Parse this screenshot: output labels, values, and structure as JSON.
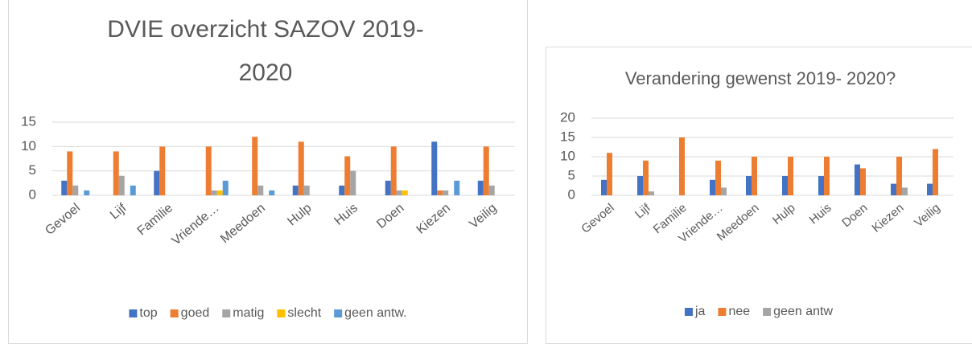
{
  "chart_data": [
    {
      "type": "bar",
      "title": "DVIE overzicht SAZOV 2019-2020",
      "categories": [
        "Gevoel",
        "Lijf",
        "Familie",
        "Vriende…",
        "Meedoen",
        "Hulp",
        "Huis",
        "Doen",
        "Kiezen",
        "Veilig"
      ],
      "series": [
        {
          "name": "top",
          "color": "#4472c4",
          "values": [
            3,
            0,
            5,
            0,
            0,
            2,
            2,
            3,
            11,
            3
          ]
        },
        {
          "name": "goed",
          "color": "#ed7d31",
          "values": [
            9,
            9,
            10,
            10,
            12,
            11,
            8,
            10,
            1,
            10
          ]
        },
        {
          "name": "matig",
          "color": "#a5a5a5",
          "values": [
            2,
            4,
            0,
            1,
            2,
            2,
            5,
            1,
            1,
            2
          ]
        },
        {
          "name": "slecht",
          "color": "#ffc000",
          "values": [
            0,
            0,
            0,
            1,
            0,
            0,
            0,
            1,
            0,
            0
          ]
        },
        {
          "name": "geen antw.",
          "color": "#5b9bd5",
          "values": [
            1,
            2,
            0,
            3,
            1,
            0,
            0,
            0,
            3,
            0
          ]
        }
      ],
      "ylim": [
        0,
        15
      ],
      "yticks": [
        0,
        5,
        10,
        15
      ],
      "grid": true,
      "legend": "bottom"
    },
    {
      "type": "bar",
      "title": "Verandering gewenst 2019- 2020?",
      "categories": [
        "Gevoel",
        "Lijf",
        "Familie",
        "Vriende…",
        "Meedoen",
        "Hulp",
        "Huis",
        "Doen",
        "Kiezen",
        "Veilig"
      ],
      "series": [
        {
          "name": "ja",
          "color": "#4472c4",
          "values": [
            4,
            5,
            0,
            4,
            5,
            5,
            5,
            8,
            3,
            3
          ]
        },
        {
          "name": "nee",
          "color": "#ed7d31",
          "values": [
            11,
            9,
            15,
            9,
            10,
            10,
            10,
            7,
            10,
            12
          ]
        },
        {
          "name": "geen antw",
          "color": "#a5a5a5",
          "values": [
            0,
            1,
            0,
            2,
            0,
            0,
            0,
            0,
            2,
            0
          ]
        }
      ],
      "ylim": [
        0,
        20
      ],
      "yticks": [
        0,
        5,
        10,
        15,
        20
      ],
      "grid": true,
      "legend": "bottom"
    }
  ]
}
